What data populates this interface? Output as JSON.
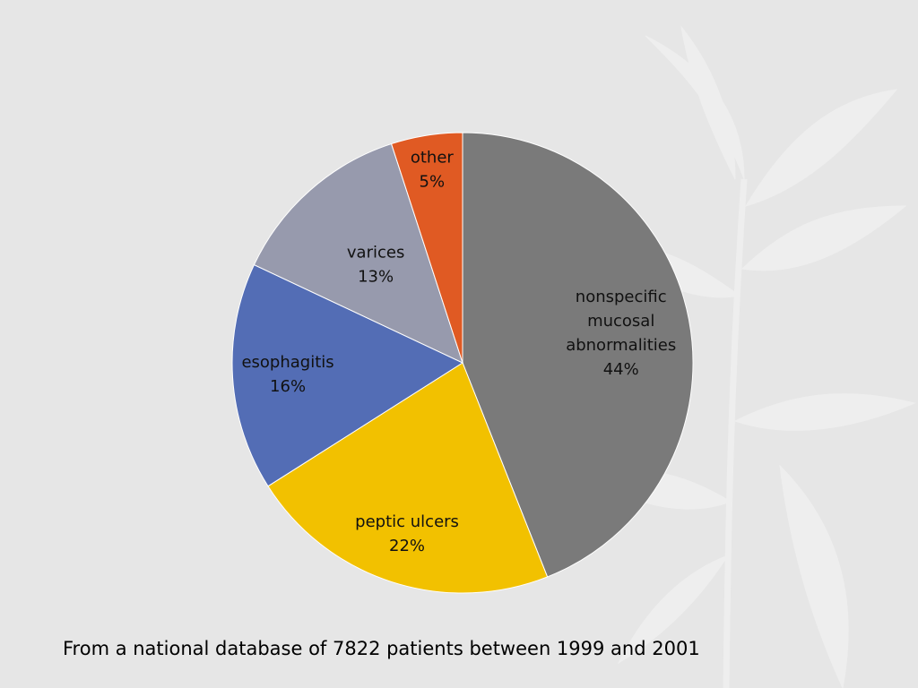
{
  "chart_data": {
    "type": "pie",
    "title": "",
    "slices": [
      {
        "label_lines": [
          "nonspecific",
          "mucosal",
          "abnormalities"
        ],
        "value": 44,
        "value_label": "44%",
        "color": "#7a7a7a"
      },
      {
        "label_lines": [
          "peptic ulcers"
        ],
        "value": 22,
        "value_label": "22%",
        "color": "#f2c100"
      },
      {
        "label_lines": [
          "esophagitis"
        ],
        "value": 16,
        "value_label": "16%",
        "color": "#536db5"
      },
      {
        "label_lines": [
          "varices"
        ],
        "value": 13,
        "value_label": "13%",
        "color": "#979aad"
      },
      {
        "label_lines": [
          "other"
        ],
        "value": 5,
        "value_label": "5%",
        "color": "#e05a23"
      }
    ],
    "start_angle": "12 o'clock",
    "direction": "clockwise",
    "legend": "none"
  },
  "caption": "From a national database of 7822 patients between 1999 and 2001",
  "colors": {
    "background": "#e6e6e6",
    "leaf_watermark": "#f0f0f0"
  }
}
